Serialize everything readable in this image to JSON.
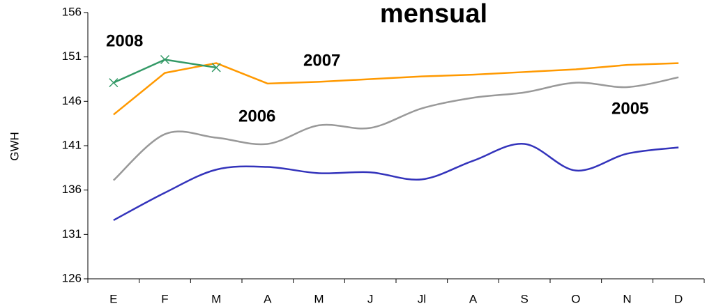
{
  "chart_data": {
    "type": "line",
    "title": "mensual",
    "y_label": "GWH",
    "categories": [
      "E",
      "F",
      "M",
      "A",
      "M",
      "J",
      "Jl",
      "A",
      "S",
      "O",
      "N",
      "D"
    ],
    "ylim": [
      126,
      156
    ],
    "yticks": [
      126,
      131,
      136,
      141,
      146,
      151,
      156
    ],
    "series": [
      {
        "name": "2005",
        "color": "#3333bb",
        "label_color": "#99cc00",
        "smooth": true,
        "values": [
          132.6,
          135.7,
          138.3,
          138.6,
          137.9,
          138.0,
          137.2,
          139.3,
          141.2,
          138.2,
          140.1,
          140.8
        ]
      },
      {
        "name": "2006",
        "color": "#999999",
        "label_color": "#000080",
        "smooth": true,
        "values": [
          137.1,
          142.3,
          141.9,
          141.2,
          143.3,
          143.0,
          145.2,
          146.4,
          147.0,
          148.1,
          147.6,
          148.7
        ]
      },
      {
        "name": "2007",
        "color": "#ff9900",
        "label_color": "#1a1adb",
        "smooth": false,
        "values": [
          144.5,
          149.2,
          150.3,
          148.0,
          148.2,
          148.5,
          148.8,
          149.0,
          149.3,
          149.6,
          150.1,
          150.3
        ]
      },
      {
        "name": "2008",
        "color": "#339966",
        "label_color": "#000000",
        "smooth": false,
        "marker": "x",
        "values": [
          148.1,
          150.7,
          149.8,
          null,
          null,
          null,
          null,
          null,
          null,
          null,
          null,
          null
        ]
      }
    ]
  }
}
